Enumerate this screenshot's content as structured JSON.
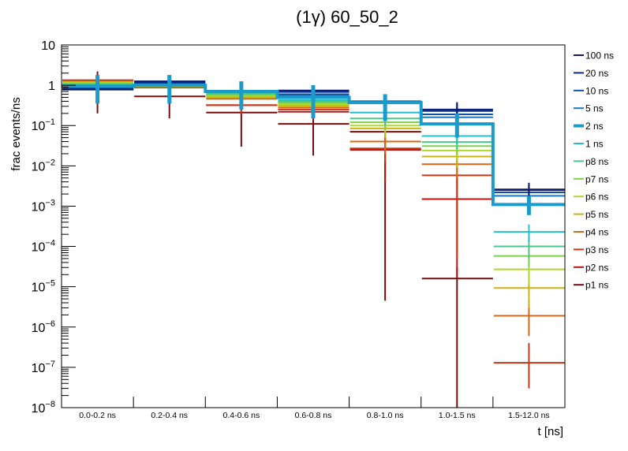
{
  "chart_data": {
    "type": "line",
    "subtype": "step-histogram-with-errorbars",
    "title": "(1γ) 60_50_2",
    "xlabel": "t [ns]",
    "ylabel": "frac events/ns",
    "yscale": "log",
    "ylim": [
      1e-08,
      10
    ],
    "y_tick_labels": [
      "10",
      "1",
      "10^-1",
      "10^-2",
      "10^-3",
      "10^-4",
      "10^-5",
      "10^-6",
      "10^-7",
      "10^-8"
    ],
    "categories": [
      "0.0-0.2 ns",
      "0.2-0.4 ns",
      "0.4-0.6 ns",
      "0.6-0.8 ns",
      "0.8-1.0 ns",
      "1.0-1.5 ns",
      "1.5-12.0 ns"
    ],
    "legend_position": "right",
    "grid": false,
    "highlight_series": "2 ns",
    "series": [
      {
        "name": "100 ns",
        "color": "#0a1a6e",
        "values": [
          0.78,
          1.25,
          0.72,
          0.74,
          0.4,
          0.25,
          0.0026
        ],
        "err_lo": [
          0.55,
          0.9,
          0.5,
          0.5,
          0.28,
          0.16,
          0.0017
        ],
        "err_hi": [
          1.1,
          1.7,
          1.0,
          1.0,
          0.55,
          0.38,
          0.0038
        ]
      },
      {
        "name": "20 ns",
        "color": "#0b2d8c",
        "values": [
          0.8,
          1.18,
          0.71,
          0.68,
          0.39,
          0.23,
          0.0025
        ],
        "err_lo": [
          0.55,
          0.85,
          0.5,
          0.48,
          0.27,
          0.15,
          0.0016
        ],
        "err_hi": [
          1.1,
          1.6,
          1.0,
          0.95,
          0.54,
          0.35,
          0.0037
        ]
      },
      {
        "name": "10 ns",
        "color": "#1050a8",
        "values": [
          0.84,
          1.12,
          0.7,
          0.6,
          0.38,
          0.19,
          0.0022
        ],
        "err_lo": [
          0.58,
          0.8,
          0.5,
          0.42,
          0.26,
          0.13,
          0.0014
        ],
        "err_hi": [
          1.2,
          1.55,
          0.98,
          0.85,
          0.52,
          0.28,
          0.0033
        ]
      },
      {
        "name": "5 ns",
        "color": "#1878c0",
        "values": [
          0.88,
          1.06,
          0.7,
          0.55,
          0.37,
          0.16,
          0.0018
        ],
        "err_lo": [
          0.6,
          0.75,
          0.5,
          0.38,
          0.25,
          0.11,
          0.0012
        ],
        "err_hi": [
          1.25,
          1.5,
          0.98,
          0.8,
          0.5,
          0.24,
          0.0028
        ]
      },
      {
        "name": "2 ns",
        "color": "#1b9bcc",
        "values": [
          0.95,
          1.0,
          0.7,
          0.5,
          0.37,
          0.11,
          0.0011
        ],
        "err_lo": [
          0.35,
          0.35,
          0.25,
          0.15,
          0.13,
          0.05,
          0.0006
        ],
        "err_hi": [
          1.8,
          1.8,
          1.25,
          1.0,
          0.6,
          0.2,
          0.0018
        ]
      },
      {
        "name": "1 ns",
        "color": "#26bfcc",
        "values": [
          1.0,
          0.98,
          0.66,
          0.43,
          0.21,
          0.055,
          0.00023
        ],
        "err_lo": [
          0.7,
          0.7,
          0.45,
          0.3,
          0.14,
          0.035,
          0.00013
        ],
        "err_hi": [
          1.4,
          1.35,
          0.95,
          0.6,
          0.3,
          0.085,
          0.00035
        ]
      },
      {
        "name": "p8 ns",
        "color": "#4cc68c",
        "values": [
          1.05,
          0.96,
          0.62,
          0.4,
          0.15,
          0.039,
          0.0001
        ],
        "err_lo": [
          0.72,
          0.68,
          0.42,
          0.27,
          0.1,
          0.025,
          5e-05
        ],
        "err_hi": [
          1.5,
          1.3,
          0.9,
          0.58,
          0.22,
          0.06,
          0.00018
        ]
      },
      {
        "name": "p7 ns",
        "color": "#7cd04a",
        "values": [
          1.1,
          0.95,
          0.58,
          0.37,
          0.12,
          0.031,
          5.8e-05
        ],
        "err_lo": [
          0.75,
          0.66,
          0.4,
          0.25,
          0.08,
          0.019,
          3e-05
        ],
        "err_hi": [
          1.55,
          1.3,
          0.85,
          0.55,
          0.18,
          0.05,
          0.0001
        ]
      },
      {
        "name": "p6 ns",
        "color": "#aed82a",
        "values": [
          1.15,
          0.94,
          0.54,
          0.34,
          0.1,
          0.024,
          2.7e-05
        ],
        "err_lo": [
          0.8,
          0.65,
          0.37,
          0.23,
          0.065,
          0.014,
          1.2e-05
        ],
        "err_hi": [
          1.6,
          1.28,
          0.8,
          0.5,
          0.15,
          0.04,
          5e-05
        ]
      },
      {
        "name": "p5 ns",
        "color": "#c8b414",
        "values": [
          1.2,
          0.93,
          0.5,
          0.31,
          0.085,
          0.017,
          9.3e-06
        ],
        "err_lo": [
          0.83,
          0.64,
          0.34,
          0.21,
          0.05,
          0.009,
          3e-06
        ],
        "err_hi": [
          1.65,
          1.27,
          0.75,
          0.46,
          0.13,
          0.03,
          2.2e-05
        ]
      },
      {
        "name": "p4 ns",
        "color": "#d2691a",
        "values": [
          1.25,
          0.92,
          0.46,
          0.28,
          0.04,
          0.011,
          1.9e-06
        ],
        "err_lo": [
          0.86,
          0.63,
          0.3,
          0.18,
          0.02,
          0.005,
          6e-07
        ],
        "err_hi": [
          1.7,
          1.26,
          0.7,
          0.43,
          0.07,
          0.022,
          4.5e-06
        ]
      },
      {
        "name": "p3 ns",
        "color": "#c83818",
        "values": [
          1.3,
          0.9,
          0.32,
          0.25,
          0.027,
          0.0058,
          1.3e-07
        ],
        "err_lo": [
          0.9,
          0.62,
          0.2,
          0.16,
          0.012,
          5e-05,
          3e-08
        ],
        "err_hi": [
          1.75,
          1.25,
          0.5,
          0.4,
          0.05,
          0.018,
          4e-07
        ]
      },
      {
        "name": "p2 ns",
        "color": "#b81414",
        "values": [
          1.33,
          0.88,
          0.32,
          0.22,
          0.025,
          0.0015,
          null
        ],
        "err_lo": [
          0.9,
          0.6,
          0.18,
          0.14,
          0.004,
          2e-05,
          null
        ],
        "err_hi": [
          1.8,
          1.25,
          0.5,
          0.36,
          0.05,
          0.006,
          null
        ]
      },
      {
        "name": "p1 ns",
        "color": "#7a0c0c",
        "values": [
          0.85,
          0.53,
          0.21,
          0.11,
          0.07,
          1.6e-05,
          null
        ],
        "err_lo": [
          0.2,
          0.15,
          0.03,
          0.018,
          4.5e-06,
          1e-08,
          null
        ],
        "err_hi": [
          2.2,
          1.5,
          0.55,
          0.3,
          0.19,
          3e-05,
          null
        ]
      }
    ]
  }
}
